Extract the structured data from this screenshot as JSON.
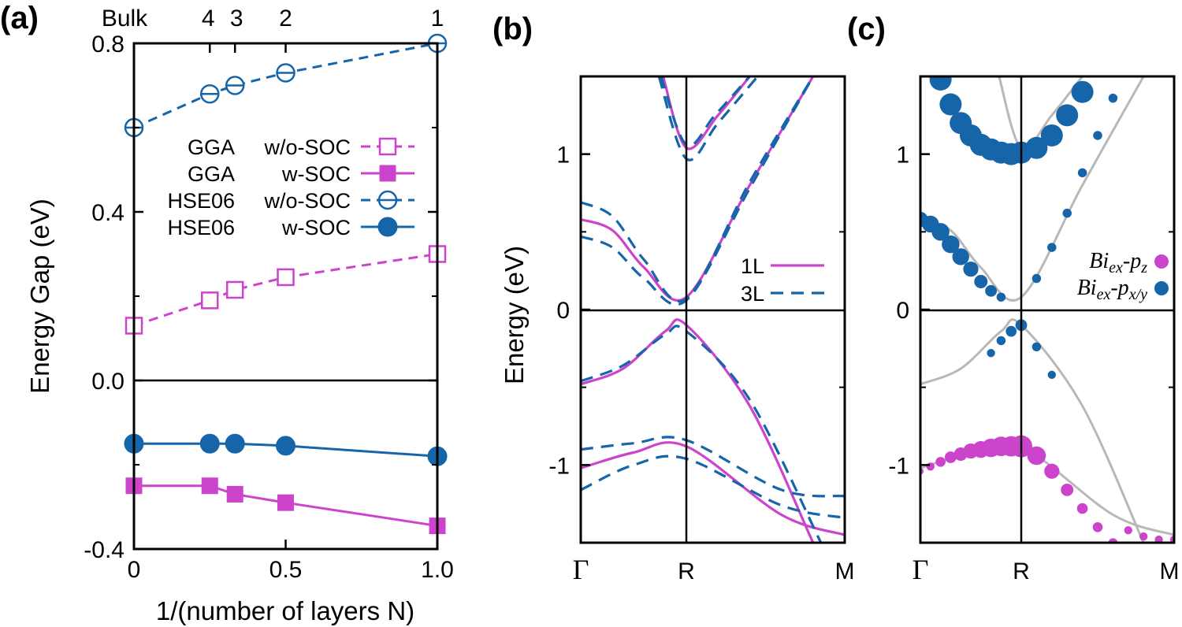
{
  "colors": {
    "magenta": "#cc44cc",
    "blue": "#1565a8",
    "gray": "#b8b8b8"
  },
  "panels": {
    "a": {
      "label": "(a)",
      "ylabel": "Energy Gap (eV)",
      "xlabel": "1/(number of layers N)",
      "top_ticks": [
        "Bulk",
        "4",
        "3",
        "2",
        "1"
      ],
      "x_ticks": [
        "0",
        "0.5",
        "1.0"
      ],
      "y_ticks": [
        "0.8",
        "0.4",
        "0.0",
        "-0.4"
      ],
      "legend": [
        {
          "method": "GGA",
          "soc": "w/o-SOC"
        },
        {
          "method": "GGA",
          "soc": "w-SOC"
        },
        {
          "method": "HSE06",
          "soc": "w/o-SOC"
        },
        {
          "method": "HSE06",
          "soc": "w-SOC"
        }
      ]
    },
    "b": {
      "label": "(b)",
      "ylabel": "Energy (eV)",
      "y_ticks": [
        "1",
        "0",
        "-1"
      ],
      "k_labels": [
        "Γ",
        "R",
        "M"
      ],
      "legend": [
        "1L",
        "3L"
      ]
    },
    "c": {
      "label": "(c)",
      "y_ticks": [
        "1",
        "0",
        "-1"
      ],
      "k_labels": [
        "Γ",
        "R",
        "M"
      ],
      "legend": [
        {
          "base": "Bi",
          "sub": "ex",
          "mid": "-p",
          "sub2": "z"
        },
        {
          "base": "Bi",
          "sub": "ex",
          "mid": "-p",
          "sub2": "x/y"
        }
      ]
    }
  },
  "chart_data": [
    {
      "panel": "a",
      "type": "line",
      "xlim": [
        0,
        1.0
      ],
      "ylim": [
        -0.4,
        0.8
      ],
      "x": [
        0,
        0.25,
        0.333,
        0.5,
        1.0
      ],
      "top_axis_layers": [
        "Bulk",
        "4",
        "3",
        "2",
        "1"
      ],
      "series": [
        {
          "key": "gga_wosoc",
          "style": "dashed-open-square",
          "color": "magenta",
          "values": [
            0.13,
            0.19,
            0.215,
            0.245,
            0.3
          ]
        },
        {
          "key": "gga_wsoc",
          "style": "solid-filled-square",
          "color": "magenta",
          "values": [
            -0.25,
            -0.25,
            -0.27,
            -0.29,
            -0.345
          ]
        },
        {
          "key": "hse_wosoc",
          "style": "dashed-open-circle",
          "color": "blue",
          "values": [
            0.6,
            0.68,
            0.7,
            0.73,
            0.8
          ]
        },
        {
          "key": "hse_wsoc",
          "style": "solid-filled-circle",
          "color": "blue",
          "values": [
            -0.15,
            -0.15,
            -0.15,
            -0.155,
            -0.18
          ]
        }
      ]
    },
    {
      "panel": "b",
      "type": "line",
      "x_k": [
        0,
        1,
        2
      ],
      "ylim": [
        -1.5,
        1.5
      ],
      "series": [
        {
          "name": "1L",
          "color": "magenta",
          "dash": false,
          "bands": [
            {
              "x": [
                0.78,
                1.0,
                1.2,
                1.4
              ],
              "y": [
                1.5,
                1.04,
                1.25,
                1.5
              ]
            },
            {
              "x": [
                0,
                0.3,
                0.6,
                1.0,
                1.4,
                1.8
              ],
              "y": [
                0.58,
                0.51,
                0.27,
                0.08,
                0.8,
                1.5
              ]
            },
            {
              "x": [
                0,
                0.4,
                0.8,
                1.0,
                1.4,
                1.8
              ],
              "y": [
                -0.48,
                -0.38,
                -0.14,
                -0.1,
                -0.62,
                -1.5
              ]
            },
            {
              "x": [
                0,
                0.5,
                1.0,
                1.6,
                2.0
              ],
              "y": [
                -1.02,
                -0.92,
                -0.88,
                -1.32,
                -1.45
              ]
            }
          ]
        },
        {
          "name": "3L",
          "color": "blue",
          "dash": true,
          "bands": [
            {
              "x": [
                0.74,
                1.0,
                1.2,
                1.45
              ],
              "y": [
                1.5,
                0.97,
                1.2,
                1.5
              ]
            },
            {
              "x": [
                0.76,
                1.0,
                1.18,
                1.4
              ],
              "y": [
                1.5,
                1.06,
                1.25,
                1.5
              ]
            },
            {
              "x": [
                0,
                0.3,
                0.6,
                1.0,
                1.4,
                1.8
              ],
              "y": [
                0.69,
                0.6,
                0.32,
                0.07,
                0.82,
                1.5
              ]
            },
            {
              "x": [
                0,
                0.3,
                0.6,
                1.0,
                1.4,
                1.8
              ],
              "y": [
                0.47,
                0.4,
                0.2,
                0.06,
                0.78,
                1.5
              ]
            },
            {
              "x": [
                0,
                0.4,
                0.8,
                1.0,
                1.4,
                1.85
              ],
              "y": [
                -0.46,
                -0.36,
                -0.16,
                -0.14,
                -0.58,
                -1.5
              ]
            },
            {
              "x": [
                0,
                0.5,
                1.0,
                1.6,
                2.0
              ],
              "y": [
                -0.9,
                -0.86,
                -0.84,
                -1.16,
                -1.2
              ]
            },
            {
              "x": [
                0,
                0.5,
                1.0,
                1.6,
                2.0
              ],
              "y": [
                -1.16,
                -1.0,
                -0.96,
                -1.26,
                -1.34
              ]
            }
          ]
        }
      ]
    },
    {
      "panel": "c",
      "type": "scatter",
      "x_k": [
        0,
        1,
        2
      ],
      "ylim": [
        -1.5,
        1.5
      ],
      "series": [
        {
          "name": "Bi_ex-p_z",
          "color": "magenta",
          "points": [
            {
              "x": 0.0,
              "y": -1.04,
              "w": 0.1
            },
            {
              "x": 0.1,
              "y": -1.01,
              "w": 0.2
            },
            {
              "x": 0.2,
              "y": -0.98,
              "w": 0.3
            },
            {
              "x": 0.3,
              "y": -0.95,
              "w": 0.4
            },
            {
              "x": 0.4,
              "y": -0.93,
              "w": 0.5
            },
            {
              "x": 0.5,
              "y": -0.91,
              "w": 0.6
            },
            {
              "x": 0.6,
              "y": -0.9,
              "w": 0.7
            },
            {
              "x": 0.7,
              "y": -0.89,
              "w": 0.8
            },
            {
              "x": 0.8,
              "y": -0.88,
              "w": 0.85
            },
            {
              "x": 0.9,
              "y": -0.88,
              "w": 0.9
            },
            {
              "x": 1.0,
              "y": -0.88,
              "w": 1.0
            },
            {
              "x": 1.1,
              "y": -0.94,
              "w": 0.8
            },
            {
              "x": 1.2,
              "y": -1.04,
              "w": 0.6
            },
            {
              "x": 1.3,
              "y": -1.16,
              "w": 0.45
            },
            {
              "x": 1.4,
              "y": -1.28,
              "w": 0.35
            },
            {
              "x": 1.5,
              "y": -1.4,
              "w": 0.3
            },
            {
              "x": 1.6,
              "y": -1.5,
              "w": 0.25
            },
            {
              "x": 1.7,
              "y": -1.42,
              "w": 0.2
            },
            {
              "x": 1.8,
              "y": -1.46,
              "w": 0.2
            },
            {
              "x": 1.9,
              "y": -1.48,
              "w": 0.2
            },
            {
              "x": 2.0,
              "y": -1.48,
              "w": 0.2
            }
          ]
        },
        {
          "name": "Bi_ex-p_x/y",
          "color": "blue",
          "points": [
            {
              "x": 0.0,
              "y": 0.58,
              "w": 0.6
            },
            {
              "x": 0.1,
              "y": 0.55,
              "w": 0.7
            },
            {
              "x": 0.2,
              "y": 0.5,
              "w": 0.75
            },
            {
              "x": 0.3,
              "y": 0.42,
              "w": 0.75
            },
            {
              "x": 0.4,
              "y": 0.34,
              "w": 0.7
            },
            {
              "x": 0.5,
              "y": 0.26,
              "w": 0.6
            },
            {
              "x": 0.6,
              "y": 0.18,
              "w": 0.5
            },
            {
              "x": 0.7,
              "y": 0.12,
              "w": 0.4
            },
            {
              "x": 0.8,
              "y": 0.08,
              "w": 0.25
            },
            {
              "x": 0.2,
              "y": 1.48,
              "w": 1.0
            },
            {
              "x": 0.3,
              "y": 1.32,
              "w": 1.0
            },
            {
              "x": 0.4,
              "y": 1.2,
              "w": 1.0
            },
            {
              "x": 0.5,
              "y": 1.12,
              "w": 1.0
            },
            {
              "x": 0.6,
              "y": 1.06,
              "w": 1.0
            },
            {
              "x": 0.7,
              "y": 1.03,
              "w": 1.0
            },
            {
              "x": 0.8,
              "y": 1.01,
              "w": 1.0
            },
            {
              "x": 0.9,
              "y": 1.0,
              "w": 1.0
            },
            {
              "x": 1.0,
              "y": 1.01,
              "w": 1.0
            },
            {
              "x": 1.1,
              "y": 1.04,
              "w": 1.0
            },
            {
              "x": 1.2,
              "y": 1.12,
              "w": 1.0
            },
            {
              "x": 1.3,
              "y": 1.25,
              "w": 1.0
            },
            {
              "x": 1.4,
              "y": 1.4,
              "w": 1.0
            },
            {
              "x": 1.1,
              "y": 0.2,
              "w": 0.25
            },
            {
              "x": 1.2,
              "y": 0.4,
              "w": 0.25
            },
            {
              "x": 1.3,
              "y": 0.62,
              "w": 0.25
            },
            {
              "x": 1.4,
              "y": 0.88,
              "w": 0.25
            },
            {
              "x": 1.5,
              "y": 1.12,
              "w": 0.25
            },
            {
              "x": 1.6,
              "y": 1.36,
              "w": 0.25
            },
            {
              "x": 0.7,
              "y": -0.28,
              "w": 0.2
            },
            {
              "x": 0.8,
              "y": -0.2,
              "w": 0.25
            },
            {
              "x": 0.9,
              "y": -0.14,
              "w": 0.35
            },
            {
              "x": 1.0,
              "y": -0.1,
              "w": 0.4
            },
            {
              "x": 1.1,
              "y": -0.24,
              "w": 0.25
            },
            {
              "x": 1.2,
              "y": -0.42,
              "w": 0.2
            }
          ]
        }
      ]
    }
  ]
}
